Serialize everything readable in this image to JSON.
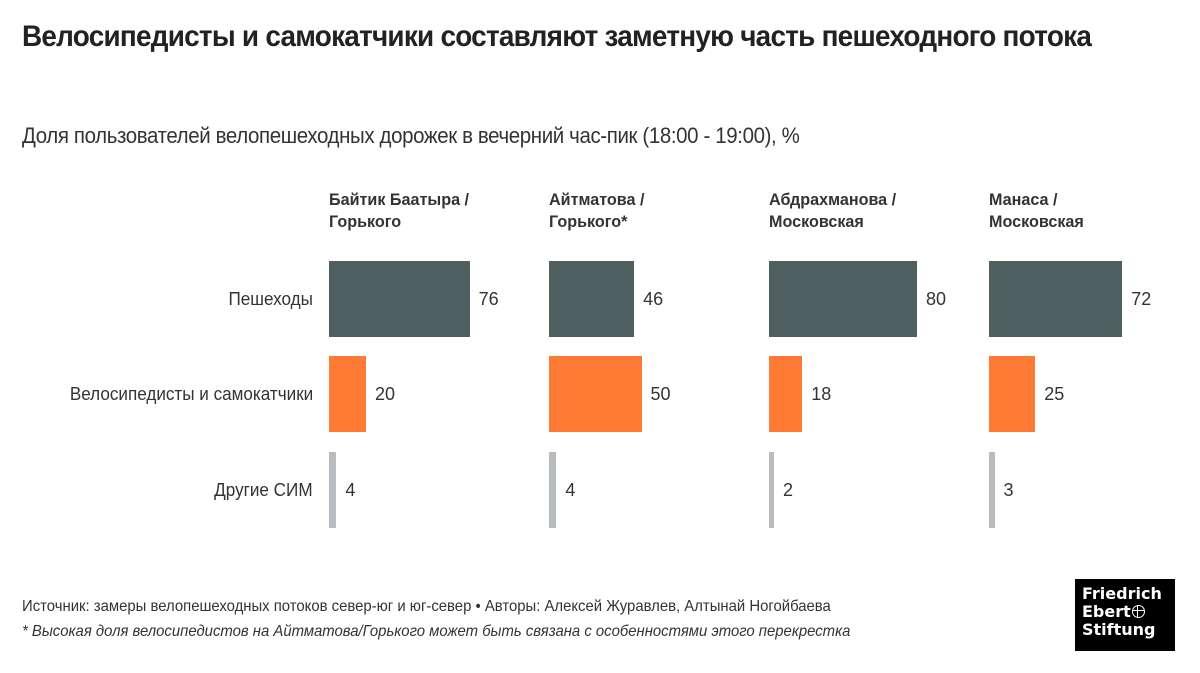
{
  "header": {
    "title": "Велосипедисты и самокатчики составляют заметную часть пешеходного потока",
    "subtitle": "Доля пользователей велопешеходных дорожек в вечерний час-пик (18:00 - 19:00), %"
  },
  "chart_data": {
    "type": "bar",
    "orientation": "horizontal",
    "layout": "small-multiples",
    "title": "Велосипедисты и самокатчики составляют заметную часть пешеходного потока",
    "subtitle": "Доля пользователей велопешеходных дорожек в вечерний час-пик (18:00 - 19:00), %",
    "categories": [
      "Пешеходы",
      "Велосипедисты и самокатчики",
      "Другие СИМ"
    ],
    "category_colors": [
      "#4f5f5f",
      "#ff7b35",
      "#b8bcbf"
    ],
    "panels": [
      {
        "name_line1": "Байтик Баатыра /",
        "name_line2": "Горького",
        "values": [
          76,
          20,
          4
        ]
      },
      {
        "name_line1": "Айтматова /",
        "name_line2": "Горького*",
        "values": [
          46,
          50,
          4
        ]
      },
      {
        "name_line1": "Абдрахманова /",
        "name_line2": "Московская",
        "values": [
          80,
          18,
          2
        ]
      },
      {
        "name_line1": "Манаса /",
        "name_line2": "Московская",
        "values": [
          72,
          25,
          3
        ]
      }
    ],
    "xlim": [
      0,
      100
    ],
    "grid": false,
    "legend": "none"
  },
  "footer": {
    "source": "Источник: замеры велопешеходных потоков север-юг и юг-север • Авторы: Алексей Журавлев, Алтынай Ногойбаева",
    "note": "* Высокая доля велосипедистов на Айтматова/Горького может быть связана с особенностями этого перекрестка"
  },
  "logo": {
    "line1": "Friedrich",
    "line2": "Ebert",
    "line3": "Stiftung",
    "icon": "globe-icon"
  }
}
